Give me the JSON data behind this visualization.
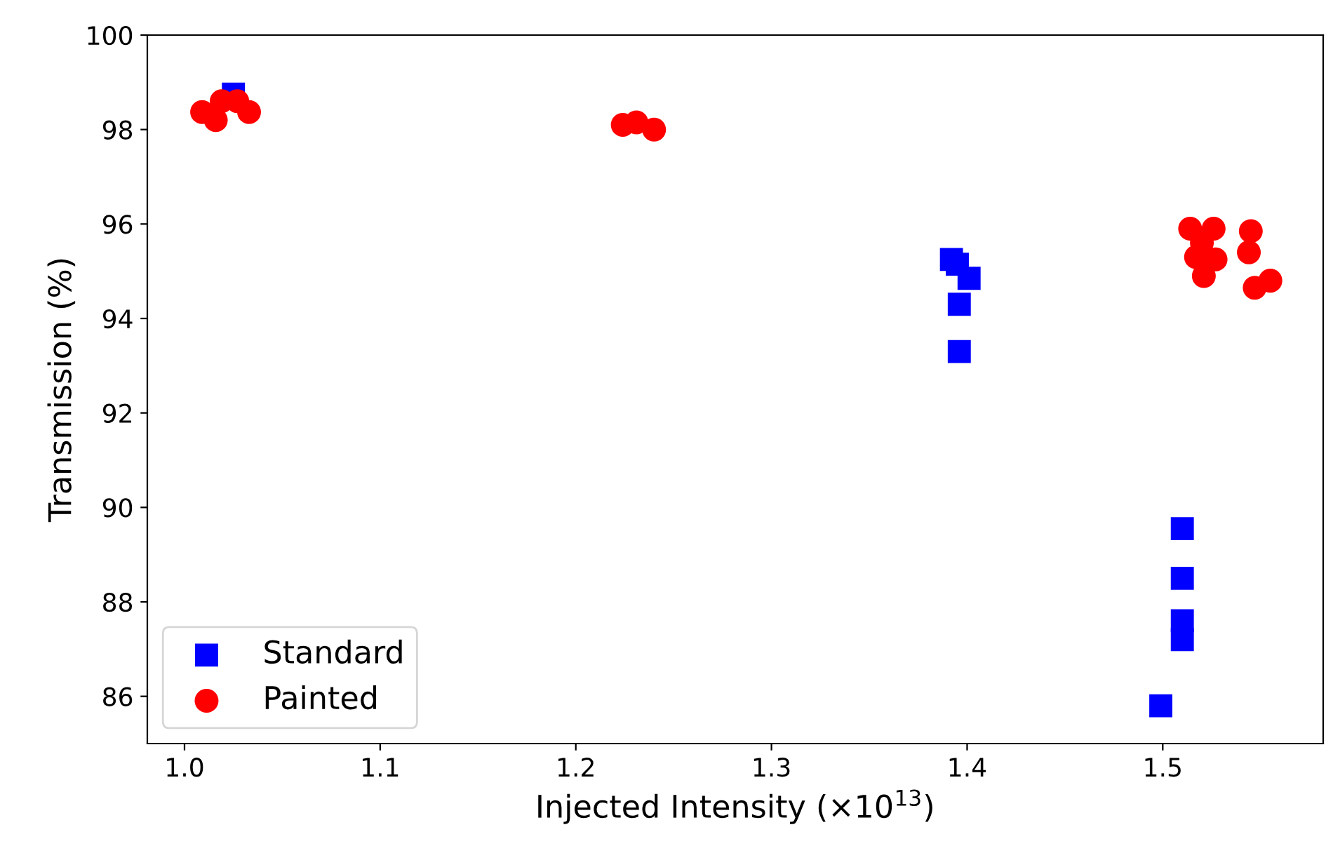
{
  "chart_data": {
    "type": "scatter",
    "xlabel": "Injected Intensity (×10$^{13}$)",
    "ylabel": "Transmission (%)",
    "xlim": [
      0.981,
      1.582
    ],
    "ylim": [
      85,
      100
    ],
    "xticks": [
      {
        "value": 1.0,
        "label": "1.0"
      },
      1.1,
      1.2,
      1.3,
      1.4,
      1.5
    ],
    "yticks": [
      86,
      88,
      90,
      92,
      94,
      96,
      98,
      100
    ],
    "grid": false,
    "legend": "bottom left",
    "series": [
      {
        "name": "Standard",
        "color": "#0000ff",
        "marker": "square",
        "x": [
          1.025,
          1.392,
          1.395,
          1.401,
          1.396,
          1.396,
          1.51,
          1.51,
          1.51,
          1.51,
          1.499
        ],
        "values": [
          98.75,
          95.25,
          95.15,
          94.85,
          94.3,
          93.3,
          89.55,
          88.5,
          87.6,
          87.2,
          85.8
        ]
      },
      {
        "name": "Painted",
        "color": "#ff0000",
        "marker": "circle",
        "x": [
          1.009,
          1.016,
          1.019,
          1.027,
          1.033,
          1.224,
          1.231,
          1.24,
          1.514,
          1.526,
          1.517,
          1.527,
          1.521,
          1.52,
          1.545,
          1.544,
          1.547,
          1.555
        ],
        "values": [
          98.37,
          98.2,
          98.6,
          98.6,
          98.37,
          98.1,
          98.15,
          98.0,
          95.9,
          95.9,
          95.3,
          95.25,
          94.9,
          95.6,
          95.85,
          95.4,
          94.65,
          94.8
        ]
      }
    ]
  }
}
